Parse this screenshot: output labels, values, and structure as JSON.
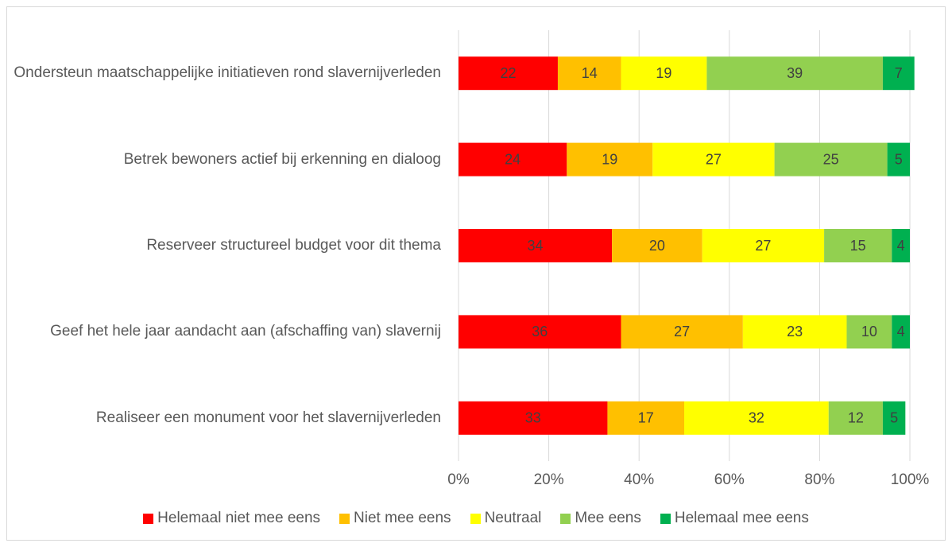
{
  "chart_data": {
    "type": "stacked_barh",
    "categories": [
      "Ondersteun maatschappelijke initiatieven rond slavernijverleden",
      "Betrek bewoners actief bij erkenning en dialoog",
      "Reserveer structureel budget voor dit thema",
      "Geef het hele jaar aandacht aan (afschaffing van) slavernij",
      "Realiseer een monument voor het slavernijverleden"
    ],
    "series": [
      {
        "name": "Helemaal niet mee eens",
        "color": "#ff0000",
        "values": [
          22,
          24,
          34,
          36,
          33
        ]
      },
      {
        "name": "Niet mee eens",
        "color": "#ffc000",
        "values": [
          14,
          19,
          20,
          27,
          17
        ]
      },
      {
        "name": "Neutraal",
        "color": "#ffff00",
        "values": [
          19,
          27,
          27,
          23,
          32
        ]
      },
      {
        "name": "Mee eens",
        "color": "#92d050",
        "values": [
          39,
          25,
          15,
          10,
          12
        ]
      },
      {
        "name": "Helemaal mee eens",
        "color": "#00b050",
        "values": [
          7,
          5,
          4,
          4,
          5
        ]
      }
    ],
    "xlim": [
      0,
      100
    ],
    "xticks": [
      {
        "value": 0,
        "label": "0%"
      },
      {
        "value": 20,
        "label": "20%"
      },
      {
        "value": 40,
        "label": "40%"
      },
      {
        "value": 60,
        "label": "60%"
      },
      {
        "value": 80,
        "label": "80%"
      },
      {
        "value": 100,
        "label": "100%"
      }
    ],
    "grid": true,
    "legend": "bottom"
  }
}
